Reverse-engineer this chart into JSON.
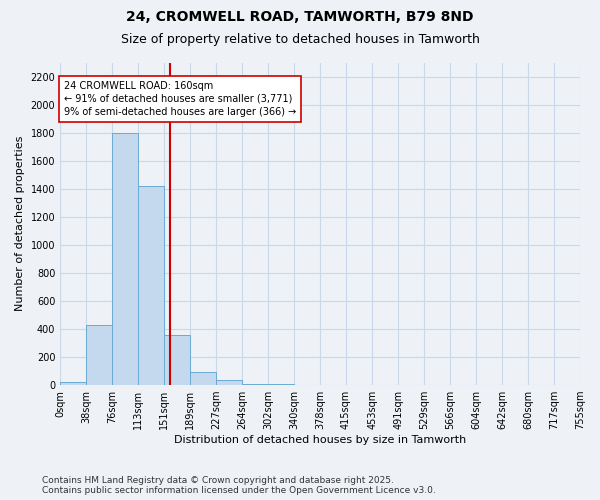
{
  "title1": "24, CROMWELL ROAD, TAMWORTH, B79 8ND",
  "title2": "Size of property relative to detached houses in Tamworth",
  "xlabel": "Distribution of detached houses by size in Tamworth",
  "ylabel": "Number of detached properties",
  "bin_edges_data": [
    0,
    38,
    76,
    113,
    151,
    189,
    227,
    264,
    302,
    340,
    378,
    415,
    453,
    491,
    529,
    566,
    604,
    642,
    680,
    717,
    755
  ],
  "bar_heights": [
    20,
    430,
    1800,
    1420,
    360,
    90,
    35,
    10,
    5,
    3,
    2,
    1,
    1,
    0,
    0,
    0,
    0,
    0,
    0,
    0
  ],
  "bar_color": "#c5d9ee",
  "bar_edgecolor": "#6aaad4",
  "grid_color": "#c8d8e8",
  "property_size": 160,
  "red_line_color": "#cc0000",
  "annotation_text": "24 CROMWELL ROAD: 160sqm\n← 91% of detached houses are smaller (3,771)\n9% of semi-detached houses are larger (366) →",
  "annotation_box_color": "#ffffff",
  "annotation_box_edgecolor": "#cc0000",
  "ylim_max": 2300,
  "yticks": [
    0,
    200,
    400,
    600,
    800,
    1000,
    1200,
    1400,
    1600,
    1800,
    2000,
    2200
  ],
  "xtick_labels": [
    "0sqm",
    "38sqm",
    "76sqm",
    "113sqm",
    "151sqm",
    "189sqm",
    "227sqm",
    "264sqm",
    "302sqm",
    "340sqm",
    "378sqm",
    "415sqm",
    "453sqm",
    "491sqm",
    "529sqm",
    "566sqm",
    "604sqm",
    "642sqm",
    "680sqm",
    "717sqm",
    "755sqm"
  ],
  "footer_text": "Contains HM Land Registry data © Crown copyright and database right 2025.\nContains public sector information licensed under the Open Government Licence v3.0.",
  "bg_color": "#eef2f7",
  "title1_fontsize": 10,
  "title2_fontsize": 9,
  "ylabel_fontsize": 8,
  "xlabel_fontsize": 8,
  "tick_fontsize": 7,
  "footer_fontsize": 6.5
}
